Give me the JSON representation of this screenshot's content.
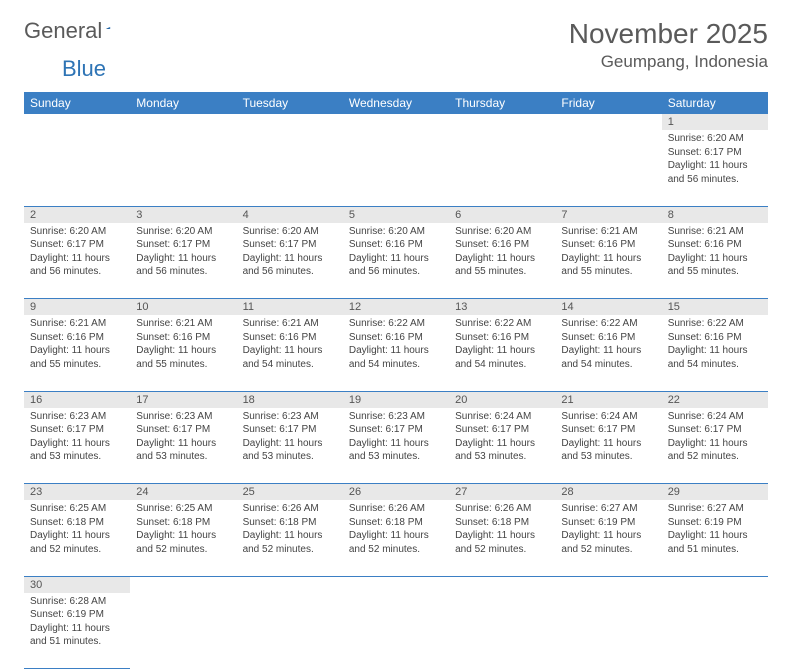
{
  "brand": {
    "part1": "General",
    "part2": "Blue"
  },
  "title": "November 2025",
  "location": "Geumpang, Indonesia",
  "colors": {
    "header_bg": "#3b7fc4",
    "header_text": "#ffffff",
    "daynum_bg": "#e8e8e8",
    "border": "#3b7fc4",
    "title_color": "#5a5a5a"
  },
  "weekdays": [
    "Sunday",
    "Monday",
    "Tuesday",
    "Wednesday",
    "Thursday",
    "Friday",
    "Saturday"
  ],
  "weeks": [
    [
      null,
      null,
      null,
      null,
      null,
      null,
      {
        "n": "1",
        "sr": "6:20 AM",
        "ss": "6:17 PM",
        "dl": "11 hours and 56 minutes."
      }
    ],
    [
      {
        "n": "2",
        "sr": "6:20 AM",
        "ss": "6:17 PM",
        "dl": "11 hours and 56 minutes."
      },
      {
        "n": "3",
        "sr": "6:20 AM",
        "ss": "6:17 PM",
        "dl": "11 hours and 56 minutes."
      },
      {
        "n": "4",
        "sr": "6:20 AM",
        "ss": "6:17 PM",
        "dl": "11 hours and 56 minutes."
      },
      {
        "n": "5",
        "sr": "6:20 AM",
        "ss": "6:16 PM",
        "dl": "11 hours and 56 minutes."
      },
      {
        "n": "6",
        "sr": "6:20 AM",
        "ss": "6:16 PM",
        "dl": "11 hours and 55 minutes."
      },
      {
        "n": "7",
        "sr": "6:21 AM",
        "ss": "6:16 PM",
        "dl": "11 hours and 55 minutes."
      },
      {
        "n": "8",
        "sr": "6:21 AM",
        "ss": "6:16 PM",
        "dl": "11 hours and 55 minutes."
      }
    ],
    [
      {
        "n": "9",
        "sr": "6:21 AM",
        "ss": "6:16 PM",
        "dl": "11 hours and 55 minutes."
      },
      {
        "n": "10",
        "sr": "6:21 AM",
        "ss": "6:16 PM",
        "dl": "11 hours and 55 minutes."
      },
      {
        "n": "11",
        "sr": "6:21 AM",
        "ss": "6:16 PM",
        "dl": "11 hours and 54 minutes."
      },
      {
        "n": "12",
        "sr": "6:22 AM",
        "ss": "6:16 PM",
        "dl": "11 hours and 54 minutes."
      },
      {
        "n": "13",
        "sr": "6:22 AM",
        "ss": "6:16 PM",
        "dl": "11 hours and 54 minutes."
      },
      {
        "n": "14",
        "sr": "6:22 AM",
        "ss": "6:16 PM",
        "dl": "11 hours and 54 minutes."
      },
      {
        "n": "15",
        "sr": "6:22 AM",
        "ss": "6:16 PM",
        "dl": "11 hours and 54 minutes."
      }
    ],
    [
      {
        "n": "16",
        "sr": "6:23 AM",
        "ss": "6:17 PM",
        "dl": "11 hours and 53 minutes."
      },
      {
        "n": "17",
        "sr": "6:23 AM",
        "ss": "6:17 PM",
        "dl": "11 hours and 53 minutes."
      },
      {
        "n": "18",
        "sr": "6:23 AM",
        "ss": "6:17 PM",
        "dl": "11 hours and 53 minutes."
      },
      {
        "n": "19",
        "sr": "6:23 AM",
        "ss": "6:17 PM",
        "dl": "11 hours and 53 minutes."
      },
      {
        "n": "20",
        "sr": "6:24 AM",
        "ss": "6:17 PM",
        "dl": "11 hours and 53 minutes."
      },
      {
        "n": "21",
        "sr": "6:24 AM",
        "ss": "6:17 PM",
        "dl": "11 hours and 53 minutes."
      },
      {
        "n": "22",
        "sr": "6:24 AM",
        "ss": "6:17 PM",
        "dl": "11 hours and 52 minutes."
      }
    ],
    [
      {
        "n": "23",
        "sr": "6:25 AM",
        "ss": "6:18 PM",
        "dl": "11 hours and 52 minutes."
      },
      {
        "n": "24",
        "sr": "6:25 AM",
        "ss": "6:18 PM",
        "dl": "11 hours and 52 minutes."
      },
      {
        "n": "25",
        "sr": "6:26 AM",
        "ss": "6:18 PM",
        "dl": "11 hours and 52 minutes."
      },
      {
        "n": "26",
        "sr": "6:26 AM",
        "ss": "6:18 PM",
        "dl": "11 hours and 52 minutes."
      },
      {
        "n": "27",
        "sr": "6:26 AM",
        "ss": "6:18 PM",
        "dl": "11 hours and 52 minutes."
      },
      {
        "n": "28",
        "sr": "6:27 AM",
        "ss": "6:19 PM",
        "dl": "11 hours and 52 minutes."
      },
      {
        "n": "29",
        "sr": "6:27 AM",
        "ss": "6:19 PM",
        "dl": "11 hours and 51 minutes."
      }
    ],
    [
      {
        "n": "30",
        "sr": "6:28 AM",
        "ss": "6:19 PM",
        "dl": "11 hours and 51 minutes."
      },
      null,
      null,
      null,
      null,
      null,
      null
    ]
  ],
  "labels": {
    "sunrise": "Sunrise:",
    "sunset": "Sunset:",
    "daylight": "Daylight:"
  }
}
